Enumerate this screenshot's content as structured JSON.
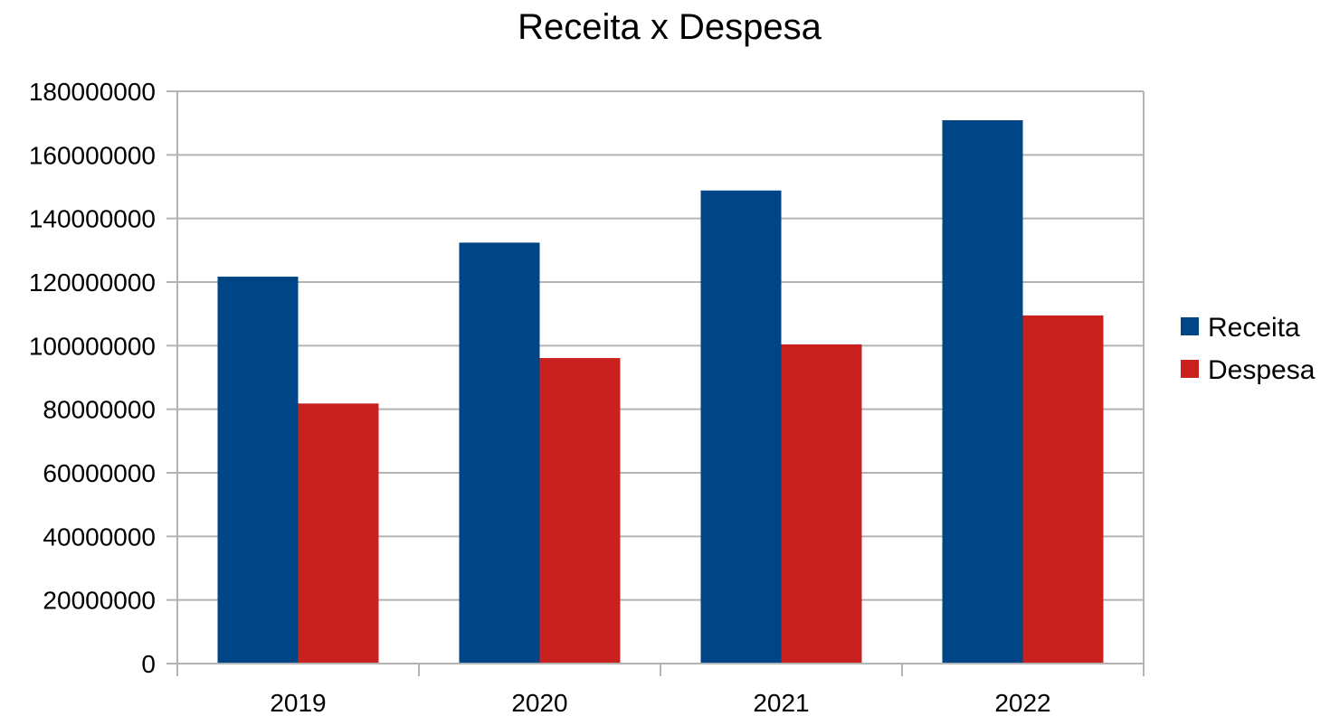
{
  "chart_data": {
    "type": "bar",
    "title": "Receita x Despesa",
    "xlabel": "",
    "ylabel": "",
    "categories": [
      "2019",
      "2020",
      "2021",
      "2022"
    ],
    "series": [
      {
        "name": "Receita",
        "color": "#004586",
        "values": [
          121700000,
          132400000,
          148800000,
          170900000
        ]
      },
      {
        "name": "Despesa",
        "color": "#c9211e",
        "values": [
          81800000,
          96100000,
          100400000,
          109500000
        ]
      }
    ],
    "ylim": [
      0,
      180000000
    ],
    "yticks": [
      "0",
      "20000000",
      "40000000",
      "60000000",
      "80000000",
      "100000000",
      "120000000",
      "140000000",
      "160000000",
      "180000000"
    ],
    "ytick_values": [
      0,
      20000000,
      40000000,
      60000000,
      80000000,
      100000000,
      120000000,
      140000000,
      160000000,
      180000000
    ],
    "grid": "horizontal",
    "legend": "right"
  }
}
